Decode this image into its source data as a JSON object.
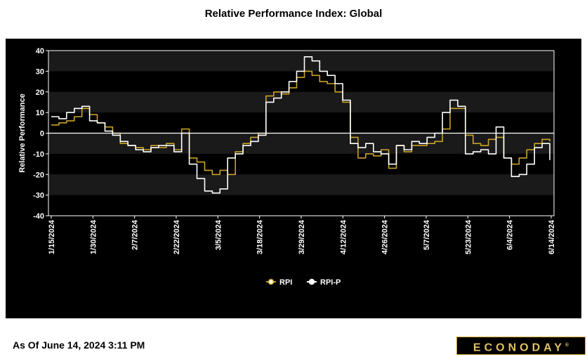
{
  "page": {
    "title": "Relative Performance Index: Global",
    "as_of": "As Of June 14, 2024 3:11 PM",
    "logo_text": "ECONODAY",
    "logo_mark": "®"
  },
  "colors": {
    "background": "#000000",
    "band": "#1a1a1a",
    "rpi": "#c9a227",
    "rpi_p": "#ffffff",
    "zero_line": "#ffffff"
  },
  "chart_data": {
    "type": "line",
    "title": "Relative Performance Index: Global",
    "ylabel": "Relative Performance",
    "xlabel": "",
    "ylim": [
      -40,
      40
    ],
    "yticks": [
      40,
      30,
      20,
      10,
      0,
      -10,
      -20,
      -30,
      -40
    ],
    "grid": "alternating horizontal bands",
    "legend": "bottom-center",
    "xtick_labels": [
      "1/15/2024",
      "1/30/2024",
      "2/7/2024",
      "2/22/2024",
      "3/5/2024",
      "3/18/2024",
      "3/29/2024",
      "4/12/2024",
      "4/26/2024",
      "5/7/2024",
      "5/23/2024",
      "6/4/2024",
      "6/14/2024"
    ],
    "x": [
      "1/15",
      "1/17",
      "1/19",
      "1/22",
      "1/24",
      "1/26",
      "1/29",
      "1/31",
      "2/2",
      "2/5",
      "2/7",
      "2/9",
      "2/12",
      "2/14",
      "2/16",
      "2/19",
      "2/21",
      "2/23",
      "2/26",
      "2/28",
      "3/1",
      "3/4",
      "3/6",
      "3/8",
      "3/11",
      "3/13",
      "3/15",
      "3/18",
      "3/20",
      "3/22",
      "3/25",
      "3/27",
      "3/29",
      "4/1",
      "4/3",
      "4/5",
      "4/8",
      "4/10",
      "4/12",
      "4/15",
      "4/17",
      "4/19",
      "4/22",
      "4/24",
      "4/26",
      "4/29",
      "5/1",
      "5/3",
      "5/6",
      "5/8",
      "5/10",
      "5/13",
      "5/15",
      "5/17",
      "5/20",
      "5/22",
      "5/24",
      "5/27",
      "5/29",
      "5/31",
      "6/3",
      "6/5",
      "6/7",
      "6/10",
      "6/12",
      "6/14"
    ],
    "series": [
      {
        "name": "RPI",
        "values": [
          4,
          5,
          6,
          8,
          12,
          9,
          5,
          3,
          0,
          -5,
          -6,
          -7,
          -8,
          -6,
          -7,
          -5,
          -8,
          2,
          -12,
          -14,
          -18,
          -20,
          -18,
          -20,
          -9,
          -5,
          -2,
          0,
          18,
          20,
          19,
          22,
          27,
          30,
          28,
          25,
          24,
          20,
          15,
          -2,
          -12,
          -10,
          -11,
          -8,
          -17,
          -6,
          -9,
          -6,
          -6,
          -5,
          -4,
          2,
          12,
          12,
          -1,
          -5,
          -6,
          -3,
          -2,
          -12,
          -15,
          -12,
          -8,
          -5,
          -3,
          -4
        ]
      },
      {
        "name": "RPI-P",
        "values": [
          8,
          7,
          10,
          12,
          13,
          6,
          5,
          1,
          -1,
          -4,
          -6,
          -8,
          -9,
          -7,
          -6,
          -6,
          -9,
          0,
          -15,
          -22,
          -28,
          -29,
          -27,
          -12,
          -10,
          -6,
          -4,
          -1,
          15,
          17,
          20,
          25,
          30,
          37,
          35,
          30,
          28,
          24,
          16,
          -5,
          -7,
          -5,
          -9,
          -10,
          -15,
          -6,
          -8,
          -4,
          -5,
          -2,
          0,
          10,
          16,
          13,
          -10,
          -9,
          -8,
          -10,
          3,
          -12,
          -21,
          -20,
          -15,
          -7,
          -5,
          -13
        ]
      }
    ]
  }
}
